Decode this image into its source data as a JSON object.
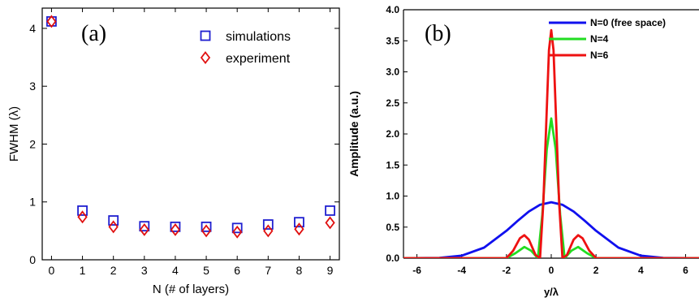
{
  "colors": {
    "axis": "#000000",
    "simulations": "#1f1fd0",
    "experiment": "#e01010",
    "n0": "#1010ee",
    "n4": "#22dd22",
    "n6": "#ee1111"
  },
  "chart_data": [
    {
      "type": "scatter",
      "panel_label": "(a)",
      "xlabel": "N (# of layers)",
      "ylabel": "FWHM (λ)",
      "xlim": [
        -0.3,
        9.3
      ],
      "ylim": [
        0,
        4.35
      ],
      "xticks": [
        "0",
        "1",
        "2",
        "3",
        "4",
        "5",
        "6",
        "7",
        "8",
        "9"
      ],
      "yticks": [
        "0",
        "1",
        "2",
        "3",
        "4"
      ],
      "grid": false,
      "legend_position": "top-right",
      "series": [
        {
          "name": "simulations",
          "marker": "square",
          "x": [
            0,
            1,
            2,
            3,
            4,
            5,
            6,
            7,
            8,
            9
          ],
          "y": [
            4.12,
            0.85,
            0.68,
            0.58,
            0.57,
            0.57,
            0.55,
            0.61,
            0.65,
            0.85
          ]
        },
        {
          "name": "experiment",
          "marker": "diamond",
          "x": [
            0,
            1,
            2,
            3,
            4,
            5,
            6,
            7,
            8,
            9
          ],
          "y": [
            4.12,
            0.74,
            0.57,
            0.52,
            0.52,
            0.5,
            0.48,
            0.5,
            0.53,
            0.64
          ]
        }
      ]
    },
    {
      "type": "line",
      "panel_label": "(b)",
      "xlabel": "y/λ",
      "ylabel": "Amplitude (a.u.)",
      "xlim": [
        -6.6,
        6.6
      ],
      "ylim": [
        0,
        4.0
      ],
      "xticks": [
        "-6",
        "-4",
        "-2",
        "0",
        "2",
        "4",
        "6"
      ],
      "yticks": [
        "0.0",
        "0.5",
        "1.0",
        "1.5",
        "2.0",
        "2.5",
        "3.0",
        "3.5",
        "4.0"
      ],
      "grid": false,
      "legend_position": "top-right",
      "series": [
        {
          "name": "N=0 (free space)",
          "x": [
            -6.6,
            -5,
            -4,
            -3,
            -2,
            -1.5,
            -1,
            -0.5,
            0,
            0.5,
            1,
            1.5,
            2,
            3,
            4,
            5,
            6.6
          ],
          "y": [
            0,
            0.005,
            0.04,
            0.17,
            0.44,
            0.6,
            0.75,
            0.86,
            0.9,
            0.86,
            0.75,
            0.6,
            0.44,
            0.17,
            0.04,
            0.005,
            0
          ]
        },
        {
          "name": "N=4",
          "x": [
            -6.6,
            -2,
            -1.6,
            -1.2,
            -0.9,
            -0.6,
            -0.4,
            -0.2,
            0,
            0.2,
            0.4,
            0.6,
            0.9,
            1.2,
            1.6,
            2,
            6.6
          ],
          "y": [
            0,
            0,
            0.08,
            0.18,
            0.12,
            0.0,
            0.7,
            1.75,
            2.25,
            1.75,
            0.7,
            0.0,
            0.12,
            0.18,
            0.08,
            0,
            0
          ]
        },
        {
          "name": "N=6",
          "x": [
            -6.6,
            -2.0,
            -1.7,
            -1.4,
            -1.2,
            -1.0,
            -0.7,
            -0.5,
            -0.35,
            -0.2,
            -0.1,
            0,
            0.1,
            0.2,
            0.35,
            0.5,
            0.7,
            1.0,
            1.2,
            1.4,
            1.7,
            2.0,
            6.6
          ],
          "y": [
            0,
            0,
            0.12,
            0.32,
            0.37,
            0.3,
            0.05,
            0.0,
            0.9,
            2.4,
            3.35,
            3.67,
            3.35,
            2.4,
            0.9,
            0.0,
            0.05,
            0.3,
            0.37,
            0.32,
            0.12,
            0,
            0
          ]
        }
      ]
    }
  ]
}
